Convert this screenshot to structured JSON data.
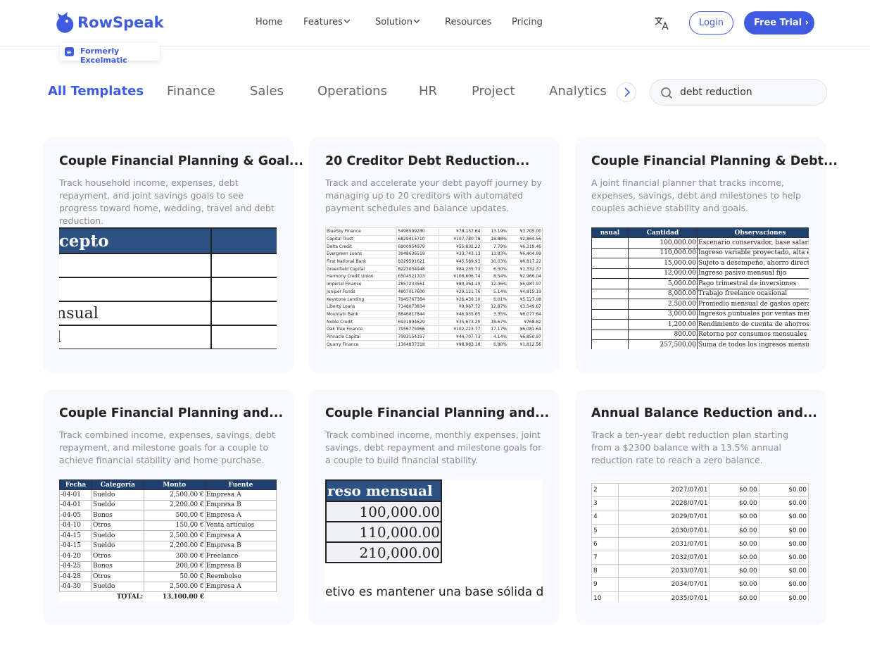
{
  "header": {
    "brand": "RowSpeak",
    "badge": "Formerly Excelmatic",
    "nav": [
      "Home",
      "Features",
      "Solution",
      "Resources",
      "Pricing"
    ],
    "login": "Login",
    "trial": "Free Trial"
  },
  "tabs": [
    "All Templates",
    "Finance",
    "Sales",
    "Operations",
    "HR",
    "Project",
    "Analytics"
  ],
  "search": {
    "query": "debt reduction"
  },
  "cards": [
    {
      "title": "Couple Financial Planning & Goal...",
      "description": "Track household income, expenses, debt repayment, and joint savings goals to see progress toward home, wedding, travel and debt reduction.",
      "preview": {
        "headers": [
          "ncepto"
        ],
        "rows": [
          [
            "ensual"
          ],
          [
            "al"
          ]
        ]
      }
    },
    {
      "title": "20 Creditor Debt Reduction...",
      "description": "Track and accelerate your debt payoff journey by managing up to 20 creditors with automated payment schedules and balance updates.",
      "preview": {
        "rows": [
          [
            "BlueSky Finance",
            "5496599280",
            "¥78,157.64",
            "13.19%",
            "¥3,705.00"
          ],
          [
            "Capital Trust",
            "6829415710",
            "¥107,780.78",
            "18.88%",
            "¥2,864.56"
          ],
          [
            "Delta Credit",
            "6900954979",
            "¥55,832.22",
            "7.79%",
            "¥6,319.46"
          ],
          [
            "Evergreen Loans",
            "3948636519",
            "¥33,743.13",
            "13.83%",
            "¥6,404.99"
          ],
          [
            "First National Bank",
            "8329591621",
            "¥45,589.93",
            "10.03%",
            "¥6,817.22"
          ],
          [
            "Greenfield Capital",
            "8223034948",
            "¥84,235.73",
            "6.30%",
            "¥1,332.37"
          ],
          [
            "Harmony Credit Union",
            "6504521703",
            "¥106,606.74",
            "8.54%",
            "¥2,966.04"
          ],
          [
            "Imperial Finance",
            "2857233561",
            "¥80,364.10",
            "12.46%",
            "¥5,987.97"
          ],
          [
            "Juniper Funds",
            "4807017600",
            "¥29,121.76",
            "5.14%",
            "¥4,815.19"
          ],
          [
            "Keystone Lending",
            "7945767384",
            "¥26,439.10",
            "6.01%",
            "¥5,127.08"
          ],
          [
            "Liberty Loans",
            "7148073834",
            "¥9,967.72",
            "12.87%",
            "¥3,549.67"
          ],
          [
            "Mountain Bank",
            "8846817844",
            "¥46,935.65",
            "3.35%",
            "¥6,077.64"
          ],
          [
            "Noble Credit",
            "6931894629",
            "¥35,673.20",
            "18.67%",
            "¥768.82"
          ],
          [
            "Oak Tree Finance",
            "7956775966",
            "¥102,223.77",
            "17.17%",
            "¥6,081.64"
          ],
          [
            "Pinnacle Capital",
            "7993154197",
            "¥44,707.73",
            "4.14%",
            "¥6,850.97"
          ],
          [
            "Quarry Finance",
            "1164837318",
            "¥98,983.18",
            "6.80%",
            "¥1,812.56"
          ]
        ]
      }
    },
    {
      "title": "Couple Financial Planning & Debt...",
      "description": "A joint financial planner that tracks income, expenses, savings, debt and milestones to help couples achieve stability and goals.",
      "preview": {
        "headers": [
          "nsual",
          "Cantidad",
          "Observaciones"
        ],
        "rows": [
          [
            "100,000.00",
            "Escenario conservador, base salarial c"
          ],
          [
            "110,000.00",
            "Ingreso variable proyectado, alta esta"
          ],
          [
            "15,000.00",
            "Sujeto a desempeño, ahorro directo"
          ],
          [
            "12,000.00",
            "Ingreso pasivo mensual fijo"
          ],
          [
            "5,000.00",
            "Pago trimestral de inversiones"
          ],
          [
            "8,000.00",
            "Trabajo freelance ocasional"
          ],
          [
            "2,500.00",
            "Promedio mensual de gastos operativ"
          ],
          [
            "3,000.00",
            "Ingresos puntuales por ventas menor"
          ],
          [
            "1,200.00",
            "Rendimiento de cuenta de ahorros"
          ],
          [
            "800.00",
            "Retorno por consumos mensuales"
          ],
          [
            "257,500.00",
            "Suma de todos los ingresos mensu"
          ]
        ]
      }
    },
    {
      "title": "Couple Financial Planning and...",
      "description": "Track combined income, expenses, savings, debt repayment, and milestone goals for a couple to achieve financial stability and home purchase.",
      "preview": {
        "headers": [
          "Fecha",
          "Categoría",
          "Monto",
          "Fuente"
        ],
        "rows": [
          [
            "-04-01",
            "Sueldo",
            "2,500.00 €",
            "Empresa A"
          ],
          [
            "-04-01",
            "Sueldo",
            "2,200.00 €",
            "Empresa B"
          ],
          [
            "-04-05",
            "Bonos",
            "500.00 €",
            "Empresa A"
          ],
          [
            "-04-10",
            "Otros",
            "150.00 €",
            "Venta artículos"
          ],
          [
            "-04-15",
            "Sueldo",
            "2,500.00 €",
            "Empresa A"
          ],
          [
            "-04-15",
            "Sueldo",
            "2,200.00 €",
            "Empresa B"
          ],
          [
            "-04-20",
            "Otros",
            "300.00 €",
            "Freelance"
          ],
          [
            "-04-25",
            "Bonos",
            "200.00 €",
            "Empresa B"
          ],
          [
            "-04-28",
            "Otros",
            "50.00 €",
            "Reembolso"
          ],
          [
            "-04-30",
            "Sueldo",
            "2,500.00 €",
            "Empresa A"
          ],
          [
            "TOTAL:",
            "13,100.00 €"
          ]
        ]
      }
    },
    {
      "title": "Couple Financial Planning and...",
      "description": "Track combined income, monthly expenses, joint savings, debt repayment and milestone goals for a couple to build financial stability.",
      "preview": {
        "headers": [
          "reso mensual"
        ],
        "rows": [
          [
            "100,000.00"
          ],
          [
            "110,000.00"
          ],
          [
            "210,000.00"
          ]
        ],
        "note": "etivo es mantener una base sólida d"
      }
    },
    {
      "title": "Annual Balance Reduction and...",
      "description": "Track a ten-year debt reduction plan starting from a $2300 balance with a 13.5% annual reduction rate to reach a zero balance.",
      "preview": {
        "rows": [
          [
            "2",
            "2027/07/01",
            "$0.00",
            "$0.00"
          ],
          [
            "3",
            "2028/07/01",
            "$0.00",
            "$0.00"
          ],
          [
            "4",
            "2029/07/01",
            "$0.00",
            "$0.00"
          ],
          [
            "5",
            "2030/07/01",
            "$0.00",
            "$0.00"
          ],
          [
            "6",
            "2031/07/01",
            "$0.00",
            "$0.00"
          ],
          [
            "7",
            "2032/07/01",
            "$0.00",
            "$0.00"
          ],
          [
            "8",
            "2033/07/01",
            "$0.00",
            "$0.00"
          ],
          [
            "9",
            "2034/07/01",
            "$0.00",
            "$0.00"
          ],
          [
            "10",
            "2035/07/01",
            "$0.00",
            "$0.00"
          ]
        ]
      }
    }
  ]
}
